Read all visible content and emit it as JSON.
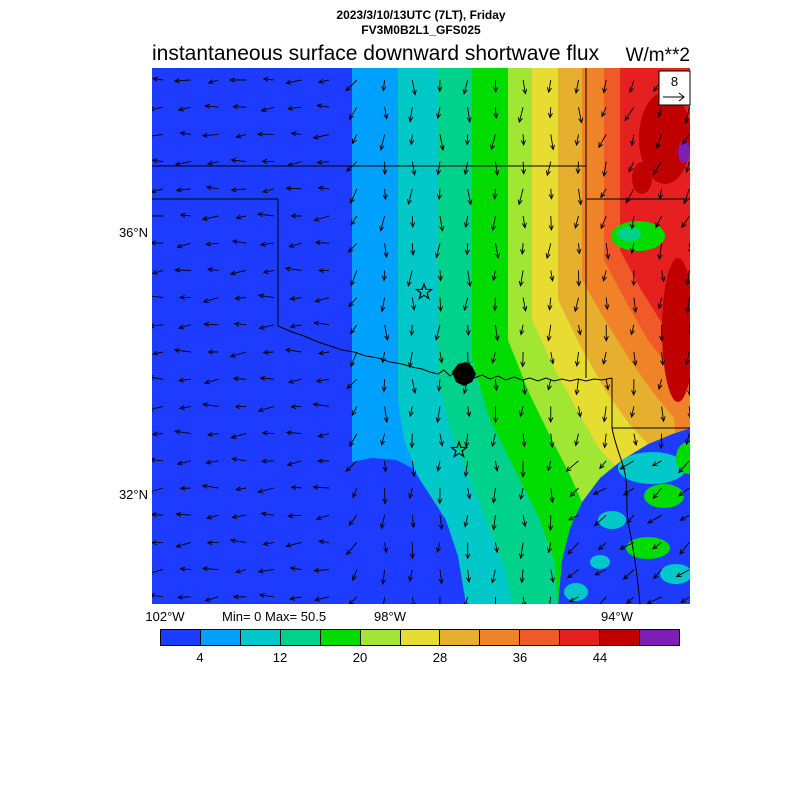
{
  "header": {
    "datetime_line": "2023/3/10/13UTC (7LT), Friday",
    "model_line": "FV3M0B2L1_GFS025"
  },
  "title": {
    "main": "instantaneous surface downward shortwave flux",
    "units": "W/m**2"
  },
  "map": {
    "lat_labels": [
      "36°N",
      "32°N"
    ],
    "lon_labels": [
      "102°W",
      "98°W",
      "94°W"
    ],
    "reference_vector": "8"
  },
  "stats": {
    "min_max": "Min= 0 Max= 50.5"
  },
  "colorbar": {
    "tick_labels": [
      "4",
      "12",
      "20",
      "28",
      "36",
      "44"
    ],
    "colors": [
      "#1e3cff",
      "#00a0ff",
      "#00c8c8",
      "#00d28c",
      "#00dc00",
      "#a0e632",
      "#e6dc32",
      "#e6af2d",
      "#f08228",
      "#f05a28",
      "#e62020",
      "#c00000",
      "#7d1eb4"
    ]
  },
  "chart_data": {
    "type": "heatmap",
    "title": "instantaneous surface downward shortwave flux",
    "units": "W/m**2",
    "valid_time": "2023/3/10/13UTC (7LT), Friday",
    "model": "FV3M0B2L1_GFS025",
    "min": 0,
    "max": 50.5,
    "contour_interval": 4,
    "levels": [
      4,
      8,
      12,
      16,
      20,
      24,
      28,
      32,
      36,
      40,
      44,
      48
    ],
    "palette": [
      "#1e3cff",
      "#00a0ff",
      "#00c8c8",
      "#00d28c",
      "#00dc00",
      "#a0e632",
      "#e6dc32",
      "#e6af2d",
      "#f08228",
      "#f05a28",
      "#e62020",
      "#c00000",
      "#7d1eb4"
    ],
    "x_ticks": [
      "102°W",
      "98°W",
      "94°W"
    ],
    "y_ticks": [
      "36°N",
      "32°N"
    ],
    "wind_reference_vector": 8,
    "legend_position": "bottom",
    "field_pattern": "near-zero flux (dark blue) over the western half; values increase eastward in roughly north-south bands reaching >44 W/m**2 (red) along the eastern edge; scattered low patches in the southeast corner; wind vectors overlaid; two star markers and state borders drawn"
  }
}
